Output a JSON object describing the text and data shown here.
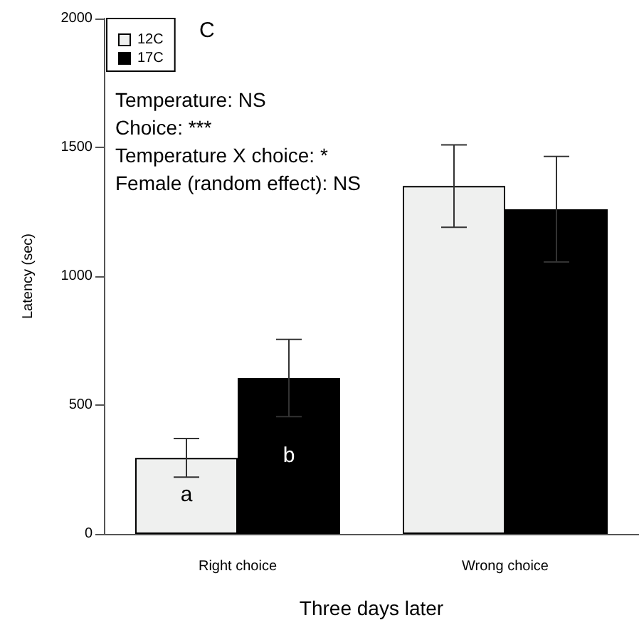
{
  "chart_data": {
    "type": "bar",
    "xlabel": "Three days later",
    "ylabel": "Latency (sec)",
    "annotations": [
      "C",
      "Temperature: NS",
      "Choice: ***",
      "Temperature X choice: *",
      "Female (random effect): NS"
    ],
    "categories": [
      "Right choice",
      "Wrong choice"
    ],
    "series": [
      {
        "name": "12C",
        "color": "#eff0ef",
        "values": [
          295,
          1350
        ],
        "errors": [
          75,
          160
        ],
        "value_labels": [
          "a",
          null
        ]
      },
      {
        "name": "17C",
        "color": "#000000",
        "values": [
          605,
          1260
        ],
        "errors": [
          150,
          205
        ],
        "value_labels": [
          "b",
          null
        ]
      }
    ],
    "ylim": [
      0,
      2000
    ],
    "yticks": [
      0,
      500,
      1000,
      1500,
      2000
    ],
    "legend": "top left"
  }
}
